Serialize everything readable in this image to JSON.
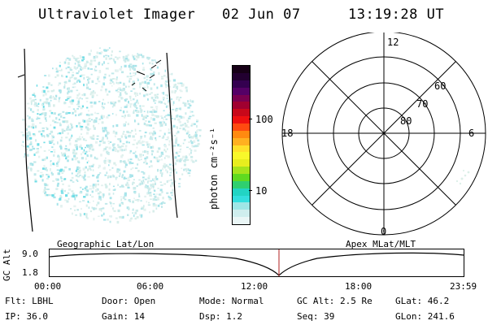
{
  "header": {
    "title": "Ultraviolet Imager",
    "date": "02 Jun 07",
    "time": "13:19:28 UT"
  },
  "colorbar": {
    "unit_label": "photon cm⁻²s⁻¹",
    "ticks": [
      "100",
      "10"
    ],
    "colors": [
      "#eaf6f6",
      "#cfeeee",
      "#9ee6e6",
      "#33dede",
      "#22d4c4",
      "#2fcf6f",
      "#5fda20",
      "#a6e41c",
      "#e8ee1e",
      "#f8f82a",
      "#ffe02a",
      "#ffb020",
      "#ff8a10",
      "#ff4a10",
      "#ee1010",
      "#c8081a",
      "#a00030",
      "#7a0050",
      "#550066",
      "#340050",
      "#220030",
      "#160016"
    ]
  },
  "polar_plot": {
    "mlt_labels": {
      "top": "12",
      "left": "18",
      "right": "6",
      "bottom": "0"
    },
    "lat_labels": [
      "60",
      "70",
      "80"
    ]
  },
  "altitude_plot": {
    "left_title": "Geographic Lat/Lon",
    "right_title": "Apex MLat/MLT",
    "y_axis_label": "GC Alt",
    "y_ticks": [
      "9.0",
      "1.8"
    ],
    "x_ticks": [
      "00:00",
      "06:00",
      "12:00",
      "18:00",
      "23:59"
    ]
  },
  "info": {
    "filter": "Flt: LBHL",
    "ip": "IP: 36.0",
    "door": "Door: Open",
    "gain": "Gain: 14",
    "mode": "Mode: Normal",
    "dsp": "Dsp:    1.2",
    "gc_alt": "GC Alt: 2.5 Re",
    "seq": "Seq: 39",
    "glat": "GLat:  46.2",
    "glon": "GLon: 241.6"
  }
}
